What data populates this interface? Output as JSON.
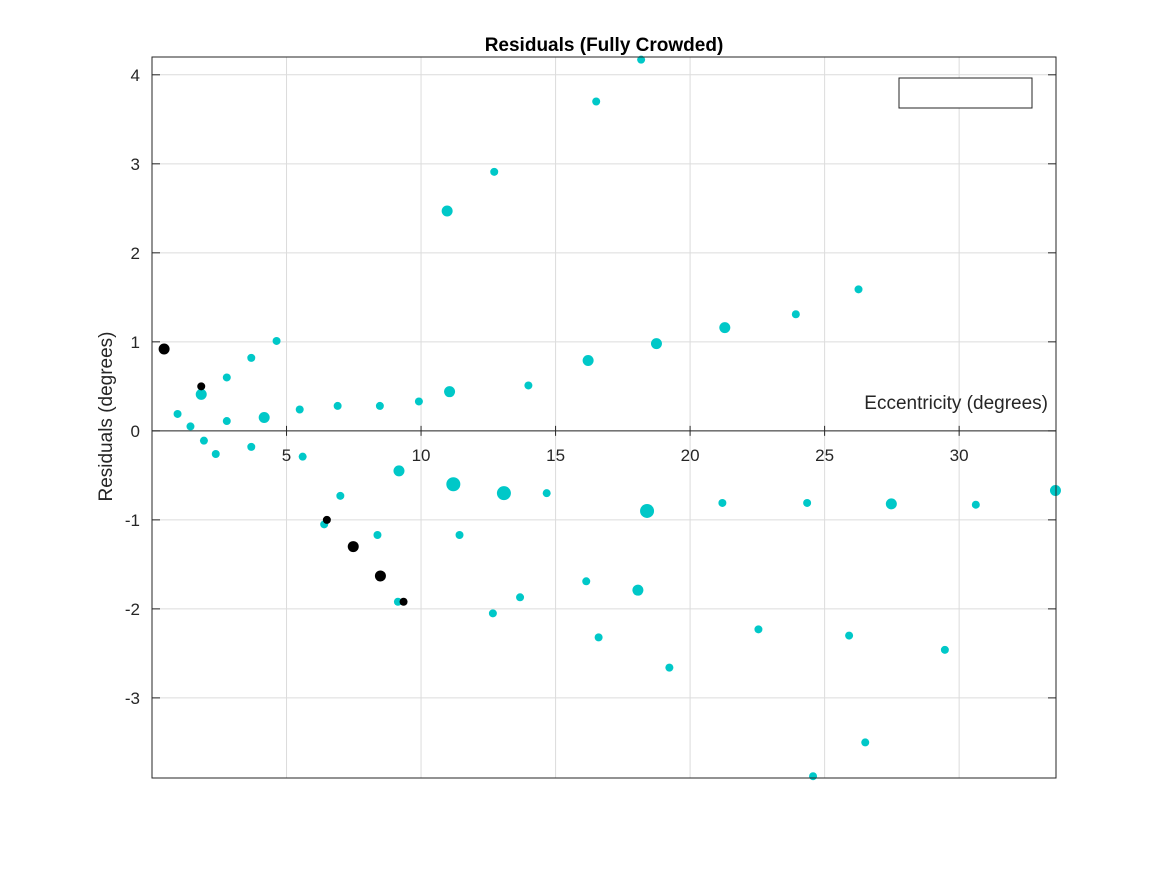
{
  "chart_data": {
    "type": "scatter",
    "title": "Residuals (Fully Crowded)",
    "xlabel": "Eccentricity (degrees)",
    "ylabel": "Residuals (degrees)",
    "xlim": [
      0,
      33.6
    ],
    "ylim": [
      -3.9,
      4.2
    ],
    "xticks": [
      5,
      10,
      15,
      20,
      25,
      30
    ],
    "yticks": [
      -3,
      -2,
      -1,
      0,
      1,
      2,
      3,
      4
    ],
    "grid": true,
    "legend": {
      "location": "top-right",
      "entries": []
    },
    "colors": {
      "cyan": "#00c8c8",
      "black": "#000000"
    },
    "series": [
      {
        "color": "cyan",
        "points": [
          {
            "x": 0.95,
            "y": 0.19,
            "s": "s"
          },
          {
            "x": 1.43,
            "y": 0.05,
            "s": "s"
          },
          {
            "x": 1.83,
            "y": 0.41,
            "s": "m"
          },
          {
            "x": 1.93,
            "y": -0.11,
            "s": "s"
          },
          {
            "x": 2.37,
            "y": -0.26,
            "s": "s"
          },
          {
            "x": 2.78,
            "y": 0.6,
            "s": "s"
          },
          {
            "x": 2.78,
            "y": 0.11,
            "s": "s"
          },
          {
            "x": 3.69,
            "y": 0.82,
            "s": "s"
          },
          {
            "x": 3.69,
            "y": -0.18,
            "s": "s"
          },
          {
            "x": 4.17,
            "y": 0.15,
            "s": "m"
          },
          {
            "x": 4.63,
            "y": 1.01,
            "s": "s"
          },
          {
            "x": 5.49,
            "y": 0.24,
            "s": "s"
          },
          {
            "x": 5.6,
            "y": -0.29,
            "s": "s"
          },
          {
            "x": 6.4,
            "y": -1.05,
            "s": "s"
          },
          {
            "x": 6.9,
            "y": 0.28,
            "s": "s"
          },
          {
            "x": 7.0,
            "y": -0.73,
            "s": "s"
          },
          {
            "x": 8.38,
            "y": -1.17,
            "s": "s"
          },
          {
            "x": 8.47,
            "y": 0.28,
            "s": "s"
          },
          {
            "x": 9.14,
            "y": -1.92,
            "s": "s"
          },
          {
            "x": 9.18,
            "y": -0.45,
            "s": "m"
          },
          {
            "x": 9.92,
            "y": 0.33,
            "s": "s"
          },
          {
            "x": 10.97,
            "y": 2.47,
            "s": "m"
          },
          {
            "x": 11.06,
            "y": 0.44,
            "s": "m"
          },
          {
            "x": 11.2,
            "y": -0.6,
            "s": "l"
          },
          {
            "x": 11.43,
            "y": -1.17,
            "s": "s"
          },
          {
            "x": 12.67,
            "y": -2.05,
            "s": "s"
          },
          {
            "x": 12.72,
            "y": 2.91,
            "s": "s"
          },
          {
            "x": 13.08,
            "y": -0.7,
            "s": "l"
          },
          {
            "x": 13.68,
            "y": -1.87,
            "s": "s"
          },
          {
            "x": 13.99,
            "y": 0.51,
            "s": "s"
          },
          {
            "x": 14.67,
            "y": -0.7,
            "s": "s"
          },
          {
            "x": 16.14,
            "y": -1.69,
            "s": "s"
          },
          {
            "x": 16.21,
            "y": 0.79,
            "s": "m"
          },
          {
            "x": 16.51,
            "y": 3.7,
            "s": "s"
          },
          {
            "x": 16.6,
            "y": -2.32,
            "s": "s"
          },
          {
            "x": 18.06,
            "y": -1.79,
            "s": "m"
          },
          {
            "x": 18.18,
            "y": 4.17,
            "s": "s"
          },
          {
            "x": 18.4,
            "y": -0.9,
            "s": "l"
          },
          {
            "x": 18.75,
            "y": 0.98,
            "s": "m"
          },
          {
            "x": 19.23,
            "y": -2.66,
            "s": "s"
          },
          {
            "x": 21.2,
            "y": -0.81,
            "s": "s"
          },
          {
            "x": 21.29,
            "y": 1.16,
            "s": "m"
          },
          {
            "x": 22.54,
            "y": -2.23,
            "s": "s"
          },
          {
            "x": 23.93,
            "y": 1.31,
            "s": "s"
          },
          {
            "x": 24.35,
            "y": -0.81,
            "s": "s"
          },
          {
            "x": 24.57,
            "y": -3.88,
            "s": "s"
          },
          {
            "x": 25.91,
            "y": -2.3,
            "s": "s"
          },
          {
            "x": 26.26,
            "y": 1.59,
            "s": "s"
          },
          {
            "x": 26.51,
            "y": -3.5,
            "s": "s"
          },
          {
            "x": 27.48,
            "y": -0.82,
            "s": "m"
          },
          {
            "x": 29.47,
            "y": -2.46,
            "s": "s"
          },
          {
            "x": 30.62,
            "y": -0.83,
            "s": "s"
          },
          {
            "x": 33.58,
            "y": -0.67,
            "s": "m"
          }
        ]
      },
      {
        "color": "black",
        "points": [
          {
            "x": 0.45,
            "y": 0.92,
            "s": "m"
          },
          {
            "x": 1.83,
            "y": 0.5,
            "s": "s"
          },
          {
            "x": 6.5,
            "y": -1.0,
            "s": "s"
          },
          {
            "x": 7.48,
            "y": -1.3,
            "s": "m"
          },
          {
            "x": 8.49,
            "y": -1.63,
            "s": "m"
          },
          {
            "x": 9.35,
            "y": -1.92,
            "s": "s"
          }
        ]
      }
    ]
  }
}
